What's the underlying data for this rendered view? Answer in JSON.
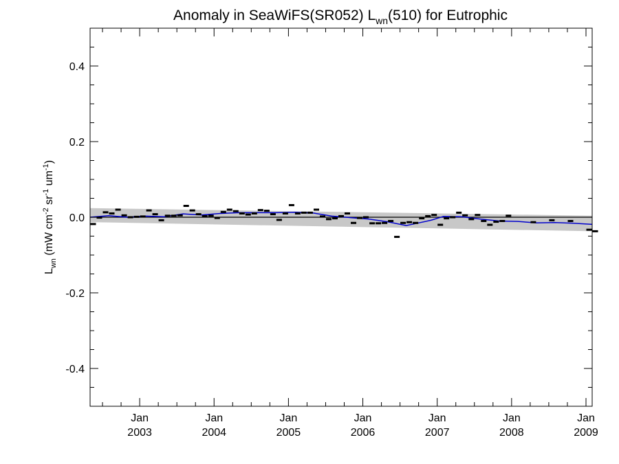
{
  "chart_data": {
    "type": "scatter",
    "title": {
      "prefix": "Anomaly in SeaWiFS(SR052) L",
      "subscript": "wn",
      "suffix": "(510) for Eutrophic"
    },
    "ylabel": {
      "main": "L",
      "sub": "wn",
      "open": " (mW cm",
      "sup1": "-2",
      "mid1": " sr",
      "sup2": "-1",
      "mid2": " um",
      "sup3": "-1",
      "close": ")"
    },
    "xlabel": "",
    "xlim": [
      "2002-05-01",
      "2009-02-01"
    ],
    "ylim": [
      -0.5,
      0.5
    ],
    "yticks": [
      {
        "value": 0.4,
        "label": "0.4"
      },
      {
        "value": 0.2,
        "label": "0.2"
      },
      {
        "value": 0.0,
        "label": "0.0"
      },
      {
        "value": -0.2,
        "label": "-0.2"
      },
      {
        "value": -0.4,
        "label": "-0.4"
      }
    ],
    "xticks": [
      {
        "value": "2003-01-01",
        "month": "Jan",
        "year": "2003"
      },
      {
        "value": "2004-01-01",
        "month": "Jan",
        "year": "2004"
      },
      {
        "value": "2005-01-01",
        "month": "Jan",
        "year": "2005"
      },
      {
        "value": "2006-01-01",
        "month": "Jan",
        "year": "2006"
      },
      {
        "value": "2007-01-01",
        "month": "Jan",
        "year": "2007"
      },
      {
        "value": "2008-01-01",
        "month": "Jan",
        "year": "2008"
      },
      {
        "value": "2009-01-01",
        "month": "Jan",
        "year": "2009"
      }
    ],
    "grid": false,
    "zero_line": 0.0,
    "uncertainty_band": {
      "color": "#c8c8c8",
      "start": {
        "x": "2002-05-01",
        "lower": -0.013,
        "upper": 0.024
      },
      "end": {
        "x": "2009-02-01",
        "lower": -0.037,
        "upper": 0.004
      }
    },
    "colors": {
      "points": "#000000",
      "smooth_line": "#0000cc",
      "zero_line": "#000000"
    },
    "series": [
      {
        "kind": "points",
        "x": [
          "2002-05",
          "2002-06",
          "2002-07",
          "2002-08",
          "2002-09",
          "2002-10",
          "2002-11",
          "2002-12",
          "2003-01",
          "2003-02",
          "2003-03",
          "2003-04",
          "2003-05",
          "2003-06",
          "2003-07",
          "2003-08",
          "2003-09",
          "2003-10",
          "2003-11",
          "2003-12",
          "2004-01",
          "2004-02",
          "2004-03",
          "2004-04",
          "2004-05",
          "2004-06",
          "2004-07",
          "2004-08",
          "2004-09",
          "2004-10",
          "2004-11",
          "2004-12",
          "2005-01",
          "2005-02",
          "2005-03",
          "2005-04",
          "2005-05",
          "2005-06",
          "2005-07",
          "2005-08",
          "2005-09",
          "2005-10",
          "2005-11",
          "2005-12",
          "2006-01",
          "2006-02",
          "2006-03",
          "2006-04",
          "2006-05",
          "2006-06",
          "2006-07",
          "2006-08",
          "2006-09",
          "2006-10",
          "2006-11",
          "2006-12",
          "2007-01",
          "2007-02",
          "2007-03",
          "2007-04",
          "2007-05",
          "2007-06",
          "2007-07",
          "2007-08",
          "2007-09",
          "2007-10",
          "2007-11",
          "2007-12",
          "2008-04",
          "2008-07",
          "2008-10",
          "2009-01",
          "2009-02"
        ],
        "y": [
          -0.018,
          -0.001,
          0.013,
          0.01,
          0.02,
          0.005,
          0.0,
          0.001,
          0.002,
          0.018,
          0.008,
          -0.008,
          0.004,
          0.004,
          0.005,
          0.03,
          0.018,
          0.008,
          0.003,
          0.004,
          -0.002,
          0.014,
          0.02,
          0.016,
          0.01,
          0.007,
          0.01,
          0.019,
          0.017,
          0.008,
          -0.007,
          0.01,
          0.032,
          0.01,
          0.012,
          0.012,
          0.02,
          0.002,
          -0.005,
          -0.003,
          0.003,
          0.01,
          -0.015,
          -0.002,
          0.0,
          -0.016,
          -0.016,
          -0.015,
          -0.01,
          -0.052,
          -0.015,
          -0.013,
          -0.015,
          -0.003,
          0.003,
          0.006,
          -0.02,
          -0.003,
          0.0,
          0.012,
          0.005,
          -0.005,
          0.006,
          -0.01,
          -0.02,
          -0.012,
          -0.01,
          0.004,
          -0.013,
          -0.008,
          -0.01,
          -0.033,
          -0.037
        ]
      },
      {
        "kind": "smoothed",
        "x": [
          "2002-05",
          "2002-08",
          "2002-11",
          "2003-02",
          "2003-05",
          "2003-08",
          "2003-11",
          "2004-02",
          "2004-05",
          "2004-08",
          "2004-11",
          "2005-02",
          "2005-05",
          "2005-08",
          "2005-11",
          "2006-02",
          "2006-05",
          "2006-08",
          "2006-10",
          "2006-12",
          "2007-02",
          "2007-05",
          "2007-08",
          "2007-11",
          "2008-02",
          "2008-05",
          "2008-08",
          "2008-11",
          "2009-02"
        ],
        "y": [
          0.0,
          0.004,
          0.0,
          0.003,
          0.001,
          0.009,
          0.006,
          0.01,
          0.012,
          0.012,
          0.012,
          0.013,
          0.011,
          0.003,
          -0.001,
          -0.005,
          -0.012,
          -0.022,
          -0.015,
          -0.008,
          0.002,
          0.001,
          -0.005,
          -0.01,
          -0.011,
          -0.015,
          -0.014,
          -0.016,
          -0.019
        ]
      }
    ]
  }
}
